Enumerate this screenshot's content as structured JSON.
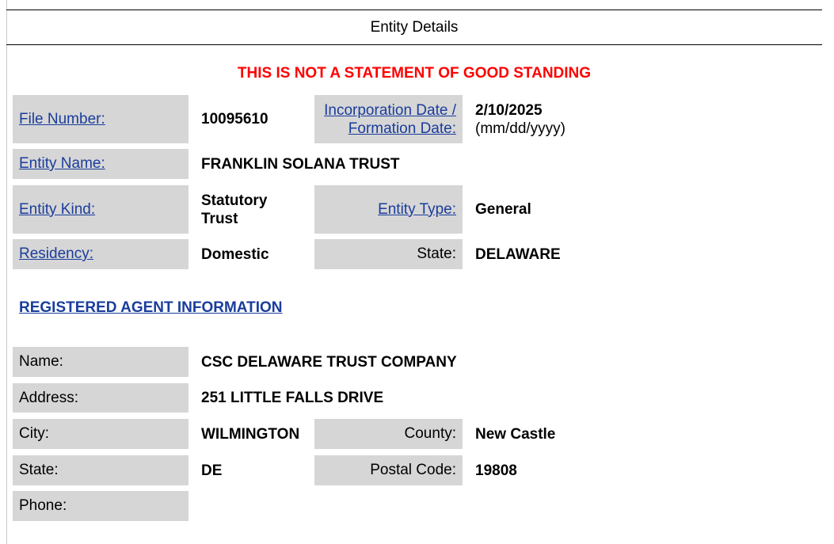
{
  "header": {
    "title": "Entity Details"
  },
  "warning": "THIS IS NOT A STATEMENT OF GOOD STANDING",
  "entity": {
    "file_number_label": "File Number:",
    "file_number": "10095610",
    "inc_date_label_1": "Incorporation Date /",
    "inc_date_label_2": "Formation Date:",
    "inc_date": "2/10/2025",
    "inc_date_format": "(mm/dd/yyyy)",
    "name_label": "Entity Name:",
    "name": "FRANKLIN SOLANA TRUST",
    "kind_label": "Entity Kind:",
    "kind_1": "Statutory",
    "kind_2": "Trust",
    "type_label": "Entity Type:",
    "type": "General",
    "residency_label": "Residency:",
    "residency": "Domestic",
    "state_label": "State:",
    "state": "DELAWARE"
  },
  "agent": {
    "heading": "REGISTERED AGENT INFORMATION",
    "name_label": "Name:",
    "name": "CSC DELAWARE TRUST COMPANY",
    "address_label": "Address:",
    "address": "251 LITTLE FALLS DRIVE",
    "city_label": "City:",
    "city": "WILMINGTON",
    "county_label": "County:",
    "county": "New Castle",
    "state_label": "State:",
    "state": "DE",
    "postal_label": "Postal Code:",
    "postal": "19808",
    "phone_label": "Phone:",
    "phone": ""
  },
  "colors": {
    "link": "#1a3d9c",
    "warning": "#ff0000",
    "label_bg": "#d6d6d6"
  }
}
